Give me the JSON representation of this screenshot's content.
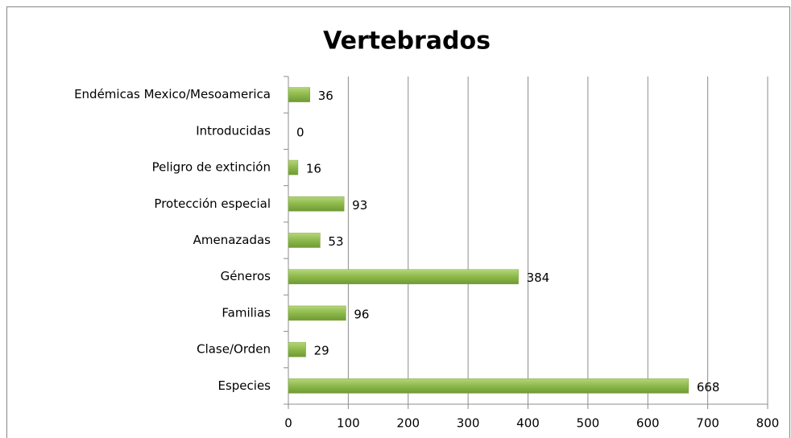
{
  "chart_data": {
    "type": "bar",
    "orientation": "horizontal",
    "title": "Vertebrados",
    "categories": [
      "Endémicas Mexico/Mesoamerica",
      "Introducidas",
      "Peligro de extinción",
      "Protección especial",
      "Amenazadas",
      "Géneros",
      "Familias",
      "Clase/Orden",
      "Especies"
    ],
    "values": [
      36,
      0,
      16,
      93,
      53,
      384,
      96,
      29,
      668
    ],
    "color": "#8db84a",
    "xlim": [
      0,
      800
    ],
    "xticks": [
      0,
      100,
      200,
      300,
      400,
      500,
      600,
      700,
      800
    ],
    "grid": true
  }
}
